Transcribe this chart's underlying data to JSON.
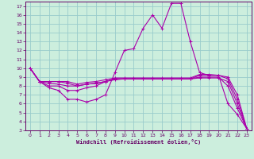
{
  "xlabel": "Windchill (Refroidissement éolien,°C)",
  "bg_color": "#cceedd",
  "line_color": "#aa00aa",
  "grid_color": "#99cccc",
  "axis_color": "#660066",
  "text_color": "#660066",
  "xlim": [
    -0.5,
    23.5
  ],
  "ylim": [
    3,
    17.5
  ],
  "xticks": [
    0,
    1,
    2,
    3,
    4,
    5,
    6,
    7,
    8,
    9,
    10,
    11,
    12,
    13,
    14,
    15,
    16,
    17,
    18,
    19,
    20,
    21,
    22,
    23
  ],
  "yticks": [
    3,
    4,
    5,
    6,
    7,
    8,
    9,
    10,
    11,
    12,
    13,
    14,
    15,
    16,
    17
  ],
  "lines": [
    [
      10.0,
      8.5,
      7.8,
      7.5,
      6.5,
      6.5,
      6.2,
      6.5,
      7.0,
      9.5,
      12.0,
      12.2,
      14.5,
      16.0,
      14.5,
      17.3,
      17.3,
      13.0,
      9.5,
      9.2,
      9.2,
      6.0,
      4.8,
      3.2
    ],
    [
      10.0,
      8.5,
      8.0,
      8.0,
      7.5,
      7.5,
      7.8,
      8.0,
      8.5,
      8.8,
      8.8,
      8.8,
      8.8,
      8.8,
      8.8,
      8.8,
      8.8,
      8.8,
      9.0,
      9.0,
      9.0,
      8.0,
      5.5,
      3.2
    ],
    [
      10.0,
      8.5,
      8.3,
      8.2,
      8.0,
      8.0,
      8.2,
      8.3,
      8.5,
      8.7,
      8.8,
      8.8,
      8.8,
      8.8,
      8.8,
      8.8,
      8.8,
      8.8,
      8.9,
      8.9,
      8.9,
      8.5,
      6.0,
      3.2
    ],
    [
      10.0,
      8.5,
      8.5,
      8.5,
      8.3,
      8.0,
      8.2,
      8.3,
      8.5,
      8.8,
      8.8,
      8.8,
      8.8,
      8.8,
      8.8,
      8.8,
      8.8,
      8.8,
      9.2,
      9.2,
      9.2,
      8.8,
      6.5,
      3.2
    ],
    [
      10.0,
      8.5,
      8.5,
      8.5,
      8.5,
      8.2,
      8.4,
      8.5,
      8.7,
      8.9,
      8.9,
      8.9,
      8.9,
      8.9,
      8.9,
      8.9,
      8.9,
      8.9,
      9.3,
      9.3,
      9.2,
      9.0,
      7.0,
      3.2
    ]
  ]
}
